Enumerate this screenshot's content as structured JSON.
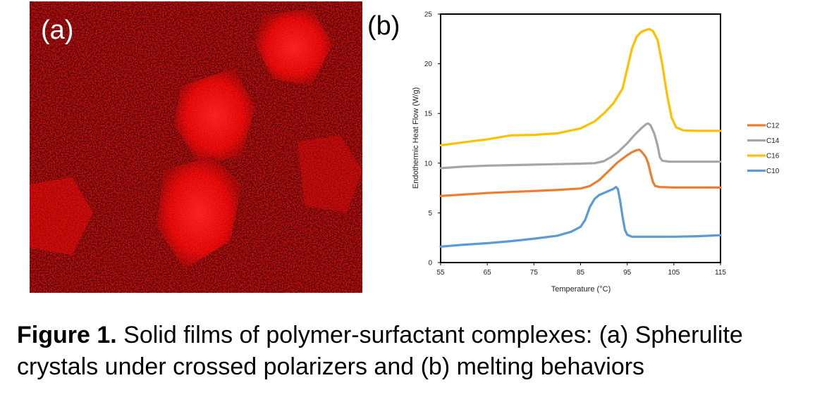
{
  "panel_a": {
    "label": "(a)"
  },
  "panel_b": {
    "label": "(b)"
  },
  "chart_data": {
    "type": "line",
    "xlabel": "Temperature (°C)",
    "ylabel": "Endothermic Heat Flow (W/g)",
    "xlim": [
      55,
      115
    ],
    "ylim": [
      0,
      25
    ],
    "x_ticks": [
      "55",
      "65",
      "75",
      "85",
      "95",
      "105",
      "115"
    ],
    "y_ticks": [
      "0",
      "5",
      "10",
      "15",
      "20",
      "25"
    ],
    "grid": false,
    "legend_position": "right",
    "series": [
      {
        "name": "C12",
        "color": "#ed7d31",
        "points": [
          [
            55,
            6.7
          ],
          [
            60,
            6.85
          ],
          [
            65,
            7.0
          ],
          [
            70,
            7.1
          ],
          [
            75,
            7.2
          ],
          [
            80,
            7.3
          ],
          [
            85,
            7.45
          ],
          [
            87,
            7.7
          ],
          [
            89,
            8.3
          ],
          [
            91,
            9.2
          ],
          [
            93,
            10.1
          ],
          [
            95,
            10.8
          ],
          [
            96,
            11.1
          ],
          [
            97,
            11.3
          ],
          [
            97.6,
            11.35
          ],
          [
            98.2,
            11.1
          ],
          [
            99,
            10.6
          ],
          [
            99.5,
            10.0
          ],
          [
            100,
            9.0
          ],
          [
            100.5,
            8.1
          ],
          [
            101,
            7.7
          ],
          [
            102,
            7.6
          ],
          [
            105,
            7.55
          ],
          [
            110,
            7.55
          ],
          [
            115,
            7.55
          ]
        ]
      },
      {
        "name": "C14",
        "color": "#a5a5a5",
        "points": [
          [
            55,
            9.5
          ],
          [
            60,
            9.65
          ],
          [
            65,
            9.75
          ],
          [
            70,
            9.8
          ],
          [
            75,
            9.85
          ],
          [
            80,
            9.9
          ],
          [
            85,
            9.95
          ],
          [
            88,
            10.0
          ],
          [
            90,
            10.2
          ],
          [
            91.5,
            10.6
          ],
          [
            93,
            11.1
          ],
          [
            95,
            12.0
          ],
          [
            96.5,
            12.8
          ],
          [
            98,
            13.5
          ],
          [
            99,
            13.9
          ],
          [
            99.5,
            14.0
          ],
          [
            100,
            13.8
          ],
          [
            100.8,
            13.0
          ],
          [
            101.5,
            11.8
          ],
          [
            102,
            10.6
          ],
          [
            102.5,
            10.25
          ],
          [
            104,
            10.15
          ],
          [
            110,
            10.15
          ],
          [
            115,
            10.15
          ]
        ]
      },
      {
        "name": "C16",
        "color": "#ffc000",
        "points": [
          [
            55,
            11.8
          ],
          [
            60,
            12.1
          ],
          [
            65,
            12.4
          ],
          [
            70,
            12.8
          ],
          [
            75,
            12.85
          ],
          [
            80,
            13.0
          ],
          [
            85,
            13.5
          ],
          [
            88,
            14.2
          ],
          [
            90,
            15.0
          ],
          [
            92,
            16.0
          ],
          [
            94,
            17.5
          ],
          [
            95,
            19.5
          ],
          [
            96,
            21.5
          ],
          [
            97,
            22.7
          ],
          [
            98,
            23.2
          ],
          [
            99,
            23.4
          ],
          [
            99.7,
            23.5
          ],
          [
            100.5,
            23.3
          ],
          [
            101.5,
            22.4
          ],
          [
            102.5,
            20.0
          ],
          [
            103.5,
            17.0
          ],
          [
            104.5,
            14.6
          ],
          [
            105.5,
            13.6
          ],
          [
            107,
            13.3
          ],
          [
            110,
            13.25
          ],
          [
            115,
            13.25
          ]
        ]
      },
      {
        "name": "C10",
        "color": "#5b9bd5",
        "points": [
          [
            55,
            1.6
          ],
          [
            60,
            1.8
          ],
          [
            65,
            1.95
          ],
          [
            70,
            2.15
          ],
          [
            75,
            2.4
          ],
          [
            80,
            2.7
          ],
          [
            83,
            3.1
          ],
          [
            85,
            3.6
          ],
          [
            86,
            4.3
          ],
          [
            87,
            5.6
          ],
          [
            88,
            6.4
          ],
          [
            89,
            6.8
          ],
          [
            90,
            7.0
          ],
          [
            91,
            7.2
          ],
          [
            92,
            7.4
          ],
          [
            92.6,
            7.6
          ],
          [
            93,
            7.4
          ],
          [
            93.5,
            6.2
          ],
          [
            94,
            4.6
          ],
          [
            94.5,
            3.3
          ],
          [
            95,
            2.8
          ],
          [
            96,
            2.6
          ],
          [
            100,
            2.6
          ],
          [
            105,
            2.6
          ],
          [
            110,
            2.65
          ],
          [
            115,
            2.75
          ]
        ]
      }
    ]
  },
  "caption": {
    "bold": "Figure 1.",
    "text": " Solid films of polymer-surfactant complexes: (a) Spherulite crystals under crossed polarizers and (b) melting behaviors"
  }
}
